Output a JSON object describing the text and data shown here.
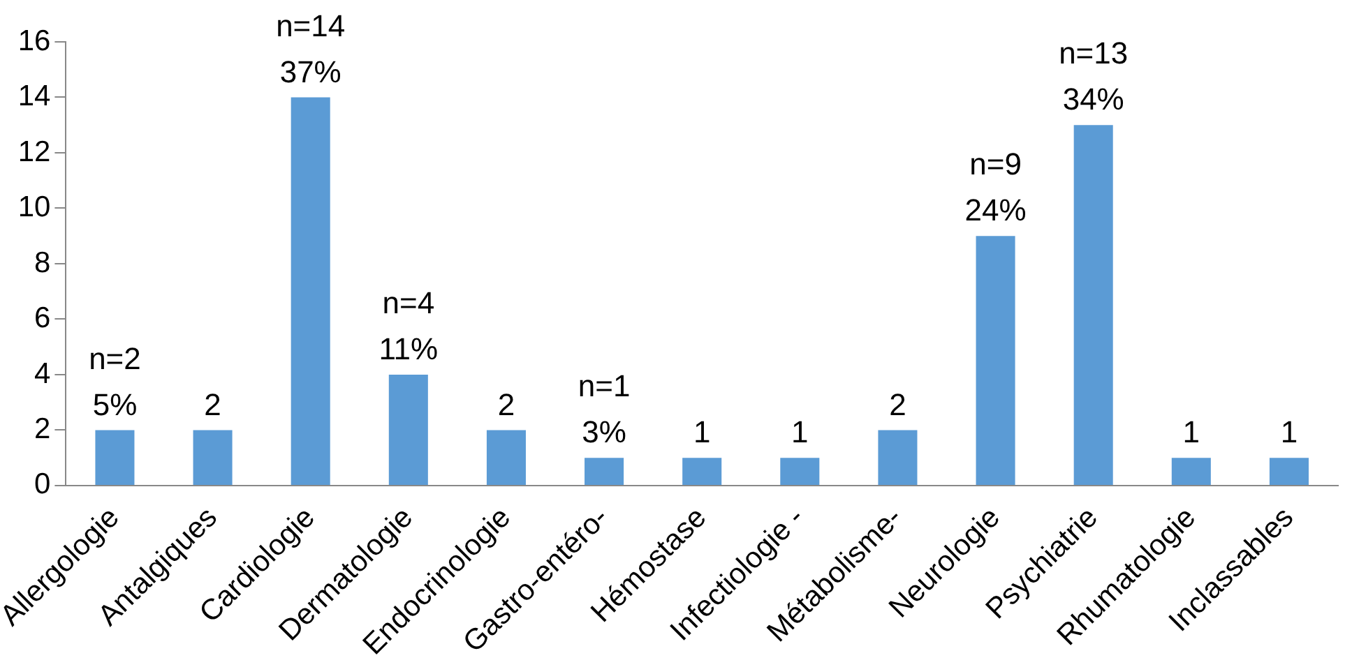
{
  "chart_data": {
    "type": "bar",
    "categories": [
      "Allergologie",
      "Antalgiques",
      "Cardiologie",
      "Dermatologie",
      "Endocrinologie",
      "Gastro-entéro-",
      "Hémostase",
      "Infectiologie -",
      "Métabolisme-",
      "Neurologie",
      "Psychiatrie",
      "Rhumatologie",
      "Inclassables"
    ],
    "values": [
      2,
      2,
      14,
      4,
      2,
      1,
      1,
      1,
      2,
      9,
      13,
      1,
      1
    ],
    "value_labels": [
      "n=2\n5%",
      "2",
      "n=14\n37%",
      "n=4\n11%",
      "2",
      "n=1\n3%",
      "1",
      "1",
      "2",
      "n=9\n24%",
      "n=13\n34%",
      "1",
      "1"
    ],
    "color": "#5b9bd5",
    "ylim": [
      0,
      16
    ],
    "yticks": [
      0,
      2,
      4,
      6,
      8,
      10,
      12,
      14,
      16
    ],
    "grid": false,
    "legend": false
  }
}
